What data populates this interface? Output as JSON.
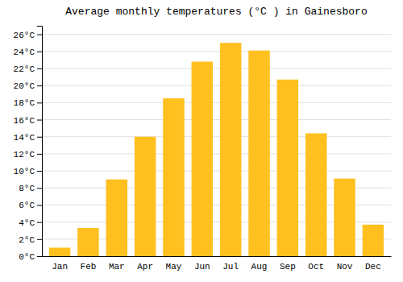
{
  "chart_data": {
    "type": "bar",
    "title": "Average monthly temperatures (°C ) in Gainesboro",
    "categories": [
      "Jan",
      "Feb",
      "Mar",
      "Apr",
      "May",
      "Jun",
      "Jul",
      "Aug",
      "Sep",
      "Oct",
      "Nov",
      "Dec"
    ],
    "values": [
      1.0,
      3.3,
      9.0,
      14.0,
      18.5,
      22.8,
      25.0,
      24.1,
      20.7,
      14.4,
      9.1,
      3.7
    ],
    "color": "#FFC020",
    "ylim": [
      0,
      27
    ],
    "yticks": [
      {
        "value": 0,
        "label": "0°C"
      },
      {
        "value": 2,
        "label": "2°C"
      },
      {
        "value": 4,
        "label": "4°C"
      },
      {
        "value": 6,
        "label": "6°C"
      },
      {
        "value": 8,
        "label": "8°C"
      },
      {
        "value": 10,
        "label": "10°C"
      },
      {
        "value": 12,
        "label": "12°C"
      },
      {
        "value": 14,
        "label": "14°C"
      },
      {
        "value": 16,
        "label": "16°C"
      },
      {
        "value": 18,
        "label": "18°C"
      },
      {
        "value": 20,
        "label": "20°C"
      },
      {
        "value": 22,
        "label": "22°C"
      },
      {
        "value": 24,
        "label": "24°C"
      },
      {
        "value": 26,
        "label": "26°C"
      }
    ],
    "grid": true
  }
}
